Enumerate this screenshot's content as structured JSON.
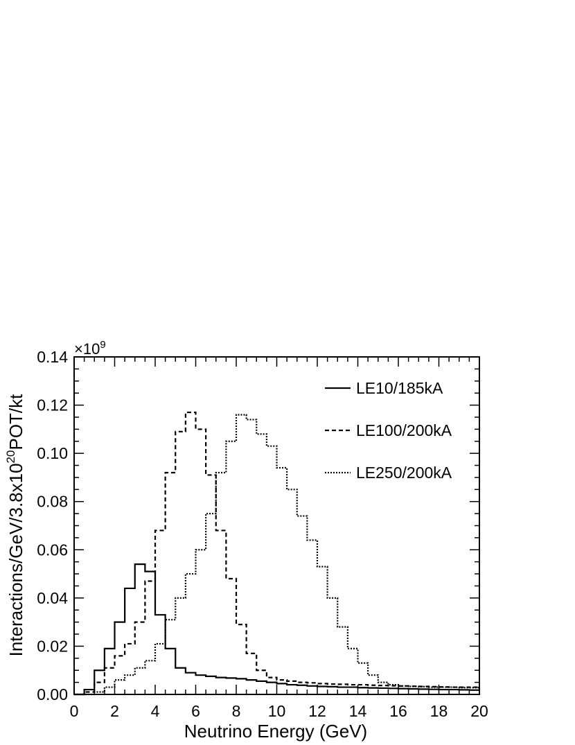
{
  "chart_data": {
    "type": "line",
    "style": "step-histogram",
    "title": "",
    "xlabel": "Neutrino Energy (GeV)",
    "ylabel_prefix": "Interactions/GeV/3.8x10",
    "ylabel_sup": "20",
    "ylabel_suffix": "POT/kt",
    "y_multiplier_base": "×10",
    "y_multiplier_exp": "9",
    "xlim": [
      0,
      20
    ],
    "ylim": [
      0,
      0.14
    ],
    "x_ticks": [
      "0",
      "2",
      "4",
      "6",
      "8",
      "10",
      "12",
      "14",
      "16",
      "18",
      "20"
    ],
    "y_ticks": [
      "0.00",
      "0.02",
      "0.04",
      "0.06",
      "0.08",
      "0.10",
      "0.12",
      "0.14"
    ],
    "grid": false,
    "legend_position": "top-right",
    "bin_width": 0.5,
    "x": [
      0.25,
      0.75,
      1.25,
      1.75,
      2.25,
      2.75,
      3.25,
      3.75,
      4.25,
      4.75,
      5.25,
      5.75,
      6.25,
      6.75,
      7.25,
      7.75,
      8.25,
      8.75,
      9.25,
      9.75,
      10.25,
      10.75,
      11.25,
      11.75,
      12.25,
      12.75,
      13.25,
      13.75,
      14.25,
      14.75,
      15.25,
      15.75,
      16.25,
      16.75,
      17.25,
      17.75,
      18.25,
      18.75,
      19.25,
      19.75
    ],
    "series": [
      {
        "name": "LE10/185kA",
        "dash": "solid",
        "values": [
          0.0,
          0.002,
          0.01,
          0.019,
          0.03,
          0.044,
          0.054,
          0.051,
          0.033,
          0.019,
          0.011,
          0.009,
          0.008,
          0.0075,
          0.007,
          0.0068,
          0.0065,
          0.006,
          0.0055,
          0.005,
          0.0045,
          0.004,
          0.0038,
          0.0035,
          0.0033,
          0.0032,
          0.003,
          0.003,
          0.0028,
          0.0027,
          0.0026,
          0.0025,
          0.0024,
          0.0023,
          0.0022,
          0.0021,
          0.002,
          0.002,
          0.0019,
          0.0018
        ]
      },
      {
        "name": "LE100/200kA",
        "dash": "dashed",
        "values": [
          0.0,
          0.001,
          0.005,
          0.011,
          0.016,
          0.021,
          0.03,
          0.047,
          0.068,
          0.092,
          0.109,
          0.117,
          0.11,
          0.091,
          0.068,
          0.048,
          0.029,
          0.017,
          0.01,
          0.007,
          0.006,
          0.0055,
          0.005,
          0.0048,
          0.0045,
          0.0043,
          0.0042,
          0.004,
          0.004,
          0.0038,
          0.0037,
          0.0036,
          0.0035,
          0.0034,
          0.0033,
          0.0032,
          0.0031,
          0.003,
          0.003,
          0.003
        ]
      },
      {
        "name": "LE250/200kA",
        "dash": "dotted",
        "values": [
          0.0,
          0.0,
          0.001,
          0.003,
          0.006,
          0.008,
          0.011,
          0.014,
          0.021,
          0.031,
          0.04,
          0.05,
          0.06,
          0.075,
          0.092,
          0.105,
          0.116,
          0.114,
          0.108,
          0.103,
          0.094,
          0.085,
          0.074,
          0.064,
          0.053,
          0.04,
          0.028,
          0.019,
          0.013,
          0.008,
          0.005,
          0.004,
          0.0035,
          0.0033,
          0.0032,
          0.003,
          0.003,
          0.003,
          0.0028,
          0.0028
        ]
      }
    ]
  }
}
